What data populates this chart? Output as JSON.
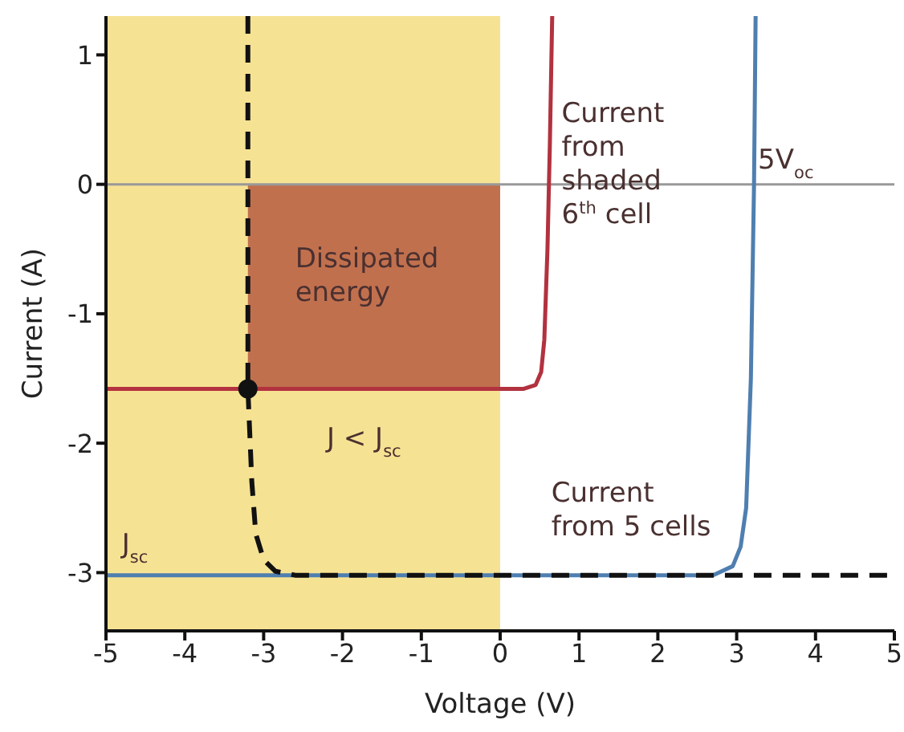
{
  "chart_data": {
    "type": "line",
    "xlabel": "Voltage (V)",
    "ylabel": "Current (A)",
    "xlim": [
      -5,
      5
    ],
    "xticks": [
      -5,
      -4,
      -3,
      -2,
      -1,
      0,
      1,
      2,
      3,
      4,
      5
    ],
    "ylim": [
      -3.45,
      1.3
    ],
    "yticks": [
      -3,
      -2,
      -1,
      0,
      1
    ],
    "grid": false,
    "legend": false,
    "bands": [
      {
        "axis": "x",
        "from": -5,
        "to": 0,
        "color": "#f6e293"
      }
    ],
    "ref_lines": [
      {
        "axis": "y",
        "value": 0,
        "color": "#999999"
      }
    ],
    "series": [
      {
        "type": "area",
        "color": "#c1704e",
        "x": [
          -3.2,
          0
        ],
        "values": [
          -1.58,
          -1.58
        ]
      },
      {
        "color": "#b2323f",
        "line_style": "solid",
        "x": [
          -5,
          0.3,
          0.45,
          0.52,
          0.56,
          0.6,
          0.63,
          0.66
        ],
        "values": [
          -1.58,
          -1.58,
          -1.55,
          -1.45,
          -1.2,
          -0.5,
          0.3,
          1.3
        ]
      },
      {
        "color": "#4f7fb0",
        "line_style": "solid",
        "x": [
          -5,
          2.7,
          2.95,
          3.05,
          3.12,
          3.18,
          3.22,
          3.24
        ],
        "values": [
          -3.02,
          -3.02,
          -2.95,
          -2.8,
          -2.5,
          -1.5,
          0,
          1.3
        ]
      },
      {
        "color": "#111111",
        "line_style": "dashed",
        "x": [
          -3.2,
          -3.2,
          -3.15,
          -3.1,
          -3,
          -2.85,
          -2.6,
          5
        ],
        "values": [
          1.3,
          -1.58,
          -2.3,
          -2.7,
          -2.9,
          -2.99,
          -3.02,
          -3.02
        ]
      },
      {
        "type": "scatter",
        "color": "#111111",
        "marker": "circle",
        "x": [
          -3.2
        ],
        "values": [
          -1.58
        ]
      }
    ],
    "annotations": [
      "Dissipated\nenergy",
      "Current\nfrom\nshaded\n6$^{th}$ cell",
      {
        "text": "5V$_{oc}$",
        "x": 3.27,
        "y": 0.12
      },
      "J < J$_{sc}$",
      "J$_{sc}$",
      "Current\nfrom 5 cells"
    ]
  }
}
